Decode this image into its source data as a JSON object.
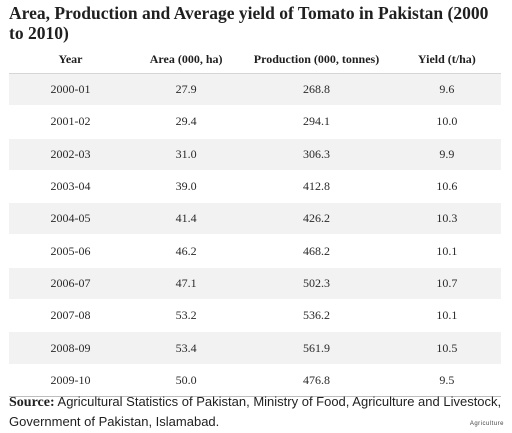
{
  "title": "Area, Production and Average yield of Tomato in Pakistan (2000 to 2010)",
  "table": {
    "headers": [
      "Year",
      "Area (000, ha)",
      "Production (000, tonnes)",
      "Yield (t/ha)"
    ],
    "rows": [
      [
        "2000-01",
        "27.9",
        "268.8",
        "9.6"
      ],
      [
        "2001-02",
        "29.4",
        "294.1",
        "10.0"
      ],
      [
        "2002-03",
        "31.0",
        "306.3",
        "9.9"
      ],
      [
        "2003-04",
        "39.0",
        "412.8",
        "10.6"
      ],
      [
        "2004-05",
        "41.4",
        "426.2",
        "10.3"
      ],
      [
        "2005-06",
        "46.2",
        "468.2",
        "10.1"
      ],
      [
        "2006-07",
        "47.1",
        "502.3",
        "10.7"
      ],
      [
        "2007-08",
        "53.2",
        "536.2",
        "10.1"
      ],
      [
        "2008-09",
        "53.4",
        "561.9",
        "10.5"
      ],
      [
        "2009-10",
        "50.0",
        "476.8",
        "9.5"
      ]
    ]
  },
  "source": {
    "label": "Source:",
    "text": " Agricultural Statistics of Pakistan, Ministry of Food, Agriculture and Livestock, Government of Pakistan, Islamabad."
  },
  "watermark": "Agriculture",
  "colors": {
    "stripe": "#f2f2f2",
    "text": "#1f1f1f"
  }
}
